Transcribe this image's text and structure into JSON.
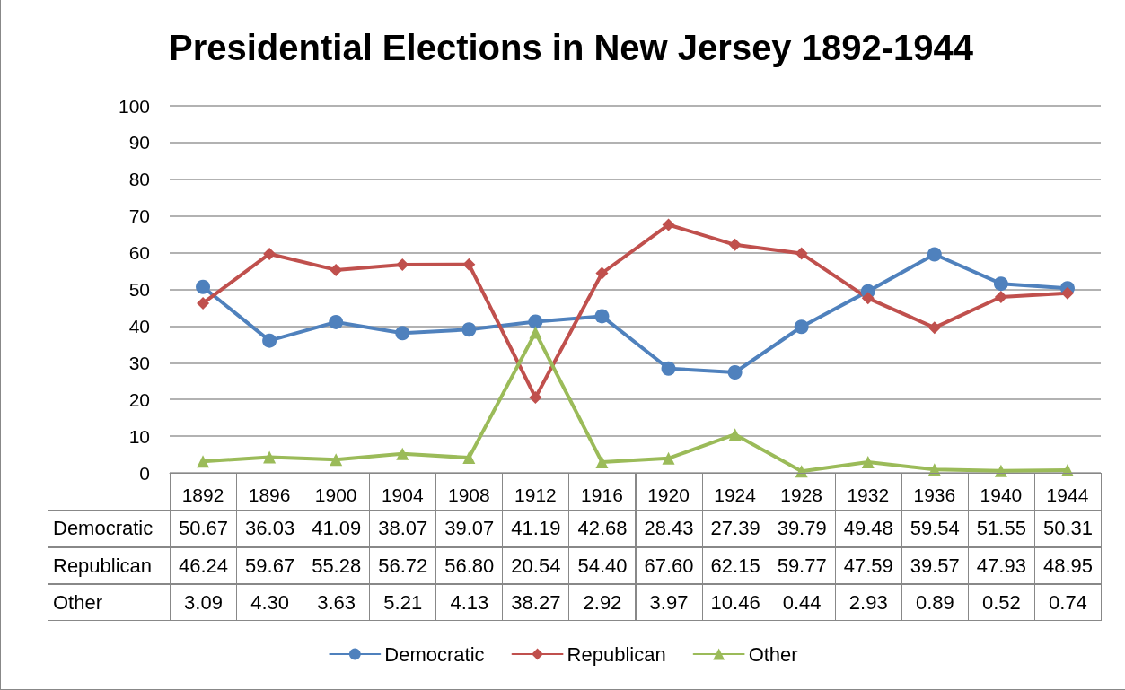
{
  "chart_data": {
    "type": "line",
    "title": "Presidential Elections in New Jersey 1892-1944",
    "categories": [
      "1892",
      "1896",
      "1900",
      "1904",
      "1908",
      "1912",
      "1916",
      "1920",
      "1924",
      "1928",
      "1932",
      "1936",
      "1940",
      "1944"
    ],
    "series": [
      {
        "name": "Democratic",
        "color": "#4f81bd",
        "marker": "circle",
        "values": [
          50.67,
          36.03,
          41.09,
          38.07,
          39.07,
          41.19,
          42.68,
          28.43,
          27.39,
          39.79,
          49.48,
          59.54,
          51.55,
          50.31
        ],
        "value_labels": [
          "50.67",
          "36.03",
          "41.09",
          "38.07",
          "39.07",
          "41.19",
          "42.68",
          "28.43",
          "27.39",
          "39.79",
          "49.48",
          "59.54",
          "51.55",
          "50.31"
        ]
      },
      {
        "name": "Republican",
        "color": "#c0504d",
        "marker": "diamond",
        "values": [
          46.24,
          59.67,
          55.28,
          56.72,
          56.8,
          20.54,
          54.4,
          67.6,
          62.15,
          59.77,
          47.59,
          39.57,
          47.93,
          48.95
        ],
        "value_labels": [
          "46.24",
          "59.67",
          "55.28",
          "56.72",
          "56.80",
          "20.54",
          "54.40",
          "67.60",
          "62.15",
          "59.77",
          "47.59",
          "39.57",
          "47.93",
          "48.95"
        ]
      },
      {
        "name": "Other",
        "color": "#9bbb59",
        "marker": "triangle",
        "values": [
          3.09,
          4.3,
          3.63,
          5.21,
          4.13,
          38.27,
          2.92,
          3.97,
          10.46,
          0.44,
          2.93,
          0.89,
          0.52,
          0.74
        ],
        "value_labels": [
          "3.09",
          "4.30",
          "3.63",
          "5.21",
          "4.13",
          "38.27",
          "2.92",
          "3.97",
          "10.46",
          "0.44",
          "2.93",
          "0.89",
          "0.52",
          "0.74"
        ]
      }
    ],
    "ylim": [
      0,
      100
    ],
    "yticks": [
      0,
      10,
      20,
      30,
      40,
      50,
      60,
      70,
      80,
      90,
      100
    ],
    "grid": "y",
    "legend": "bottom",
    "line_style": "solid"
  }
}
